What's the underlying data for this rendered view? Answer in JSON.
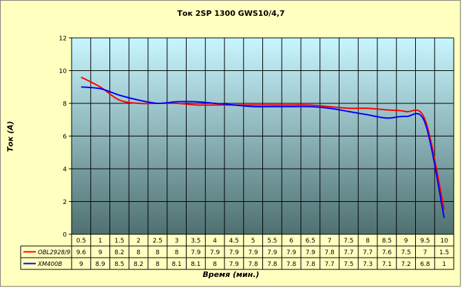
{
  "colors": {
    "background": "#ffffc0",
    "plot_top": "#c8f6ff",
    "plot_bottom": "#4f7070",
    "series_red": "#ff0000",
    "series_blue": "#0000ff"
  },
  "chart_data": {
    "type": "line",
    "title": "Ток 2SP 1300 GWS10/4,7",
    "xlabel": "Время (мин.)",
    "ylabel": "Ток (А)",
    "categories": [
      "0.5",
      "1",
      "1.5",
      "2",
      "2.5",
      "3",
      "3.5",
      "4",
      "4.5",
      "5",
      "5.5",
      "6",
      "6.5",
      "7",
      "7.5",
      "8",
      "8.5",
      "9",
      "9.5",
      "10"
    ],
    "series": [
      {
        "name": "OBL2928/9",
        "color": "#ff0000",
        "labels": [
          "9.6",
          "9",
          "8.2",
          "8",
          "8",
          "8",
          "7.9",
          "7.9",
          "7.9",
          "7.9",
          "7.9",
          "7.9",
          "7.9",
          "7.8",
          "7.7",
          "7.7",
          "7.6",
          "7.5",
          "7",
          "1.5"
        ],
        "values": [
          9.6,
          9,
          8.2,
          8,
          8,
          8,
          7.9,
          7.9,
          7.9,
          7.9,
          7.9,
          7.9,
          7.9,
          7.8,
          7.7,
          7.7,
          7.6,
          7.5,
          7,
          1.5
        ]
      },
      {
        "name": "XM400B",
        "color": "#0000ff",
        "labels": [
          "9",
          "8.9",
          "8.5",
          "8.2",
          "8",
          "8.1",
          "8.1",
          "8",
          "7.9",
          "7.8",
          "7.8",
          "7.8",
          "7.8",
          "7.7",
          "7.5",
          "7.3",
          "7.1",
          "7.2",
          "6.8",
          "1"
        ],
        "values": [
          9,
          8.9,
          8.5,
          8.2,
          8,
          8.1,
          8.1,
          8,
          7.9,
          7.8,
          7.8,
          7.8,
          7.8,
          7.7,
          7.5,
          7.3,
          7.1,
          7.2,
          6.8,
          1
        ]
      }
    ],
    "ylim": [
      0,
      12
    ],
    "yticks": [
      "0",
      "2",
      "4",
      "6",
      "8",
      "10",
      "12"
    ],
    "grid": true,
    "legend": "data-table-left"
  }
}
